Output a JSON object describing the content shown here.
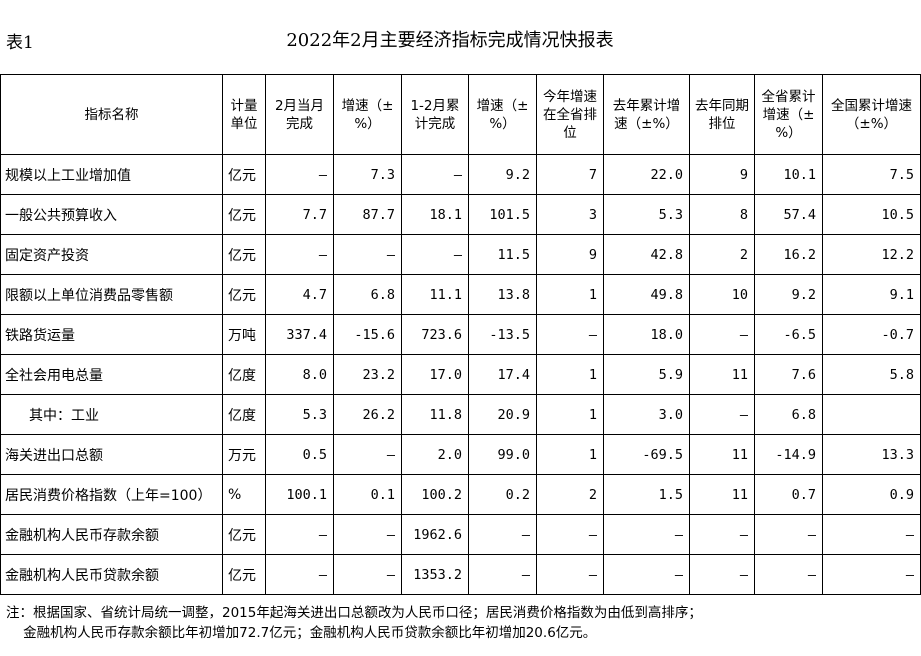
{
  "table_label": "表1",
  "title": "2022年2月主要经济指标完成情况快报表",
  "headers": [
    "指标名称",
    "计量单位",
    "2月当月完成",
    "增速（±%）",
    "1-2月累计完成",
    "增速（±%）",
    "今年增速在全省排位",
    "去年累计增速（±%）",
    "去年同期排位",
    "全省累计增速（±%）",
    "全国累计增速（±%）"
  ],
  "rows": [
    [
      "规模以上工业增加值",
      "亿元",
      "—",
      "7.3",
      "—",
      "9.2",
      "7",
      "22.0",
      "9",
      "10.1",
      "7.5"
    ],
    [
      "一般公共预算收入",
      "亿元",
      "7.7",
      "87.7",
      "18.1",
      "101.5",
      "3",
      "5.3",
      "8",
      "57.4",
      "10.5"
    ],
    [
      "固定资产投资",
      "亿元",
      "—",
      "—",
      "—",
      "11.5",
      "9",
      "42.8",
      "2",
      "16.2",
      "12.2"
    ],
    [
      "限额以上单位消费品零售额",
      "亿元",
      "4.7",
      "6.8",
      "11.1",
      "13.8",
      "1",
      "49.8",
      "10",
      "9.2",
      "9.1"
    ],
    [
      "铁路货运量",
      "万吨",
      "337.4",
      "-15.6",
      "723.6",
      "-13.5",
      "—",
      "18.0",
      "—",
      "-6.5",
      "-0.7"
    ],
    [
      "全社会用电总量",
      "亿度",
      "8.0",
      "23.2",
      "17.0",
      "17.4",
      "1",
      "5.9",
      "11",
      "7.6",
      "5.8"
    ],
    [
      "其中：工业",
      "亿度",
      "5.3",
      "26.2",
      "11.8",
      "20.9",
      "1",
      "3.0",
      "—",
      "6.8",
      ""
    ],
    [
      "海关进出口总额",
      "万元",
      "0.5",
      "—",
      "2.0",
      "99.0",
      "1",
      "-69.5",
      "11",
      "-14.9",
      "13.3"
    ],
    [
      "居民消费价格指数（上年=100）",
      "%",
      "100.1",
      "0.1",
      "100.2",
      "0.2",
      "2",
      "1.5",
      "11",
      "0.7",
      "0.9"
    ],
    [
      "金融机构人民币存款余额",
      "亿元",
      "—",
      "—",
      "1962.6",
      "—",
      "—",
      "—",
      "—",
      "—",
      "—"
    ],
    [
      "金融机构人民币贷款余额",
      "亿元",
      "—",
      "—",
      "1353.2",
      "—",
      "—",
      "—",
      "—",
      "—",
      "—"
    ]
  ],
  "note_lines": [
    "注：根据国家、省统计局统一调整，2015年起海关进出口总额改为人民币口径；居民消费价格指数为由低到高排序；",
    "    金融机构人民币存款余额比年初增加72.7亿元；金融机构人民币贷款余额比年初增加20.6亿元。"
  ]
}
